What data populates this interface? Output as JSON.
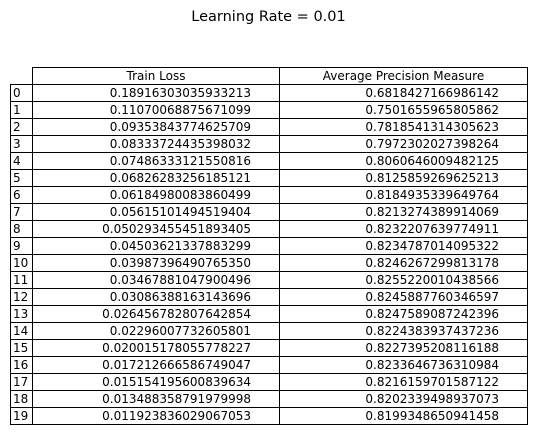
{
  "chart_data": {
    "type": "table",
    "title": "Learning Rate = 0.01",
    "columns": [
      "Train Loss",
      "Average Precision Measure"
    ],
    "row_labels": [
      "0",
      "1",
      "2",
      "3",
      "4",
      "5",
      "6",
      "7",
      "8",
      "9",
      "10",
      "11",
      "12",
      "13",
      "14",
      "15",
      "16",
      "17",
      "18",
      "19"
    ],
    "rows": [
      [
        "0.18916303035933213",
        "0.6818427166986142"
      ],
      [
        "0.11070068875671099",
        "0.7501655965805862"
      ],
      [
        "0.09353843774625709",
        "0.7818541314305623"
      ],
      [
        "0.08333724435398032",
        "0.7972302027398264"
      ],
      [
        "0.07486333121550816",
        "0.8060646009482125"
      ],
      [
        "0.06826283256185121",
        "0.8125859269625213"
      ],
      [
        "0.06184980083860499",
        "0.8184935339649764"
      ],
      [
        "0.05615101494519404",
        "0.8213274389914069"
      ],
      [
        "0.050293455451893405",
        "0.8232207639774911"
      ],
      [
        "0.04503621337883299",
        "0.8234787014095322"
      ],
      [
        "0.03987396490765350",
        "0.8246267299813178"
      ],
      [
        "0.03467881047900496",
        "0.8255220010438566"
      ],
      [
        "0.03086388163143696",
        "0.8245887760346597"
      ],
      [
        "0.026456782807642854",
        "0.8247589087242396"
      ],
      [
        "0.02296007732605801",
        "0.8224383937437236"
      ],
      [
        "0.020015178055778227",
        "0.8227395208116188"
      ],
      [
        "0.017212666586749047",
        "0.8233646736310984"
      ],
      [
        "0.015154195600839634",
        "0.8216159701587122"
      ],
      [
        "0.013488358791979998",
        "0.8202339498937073"
      ],
      [
        "0.011923836029067053",
        "0.8199348650941458"
      ]
    ]
  }
}
